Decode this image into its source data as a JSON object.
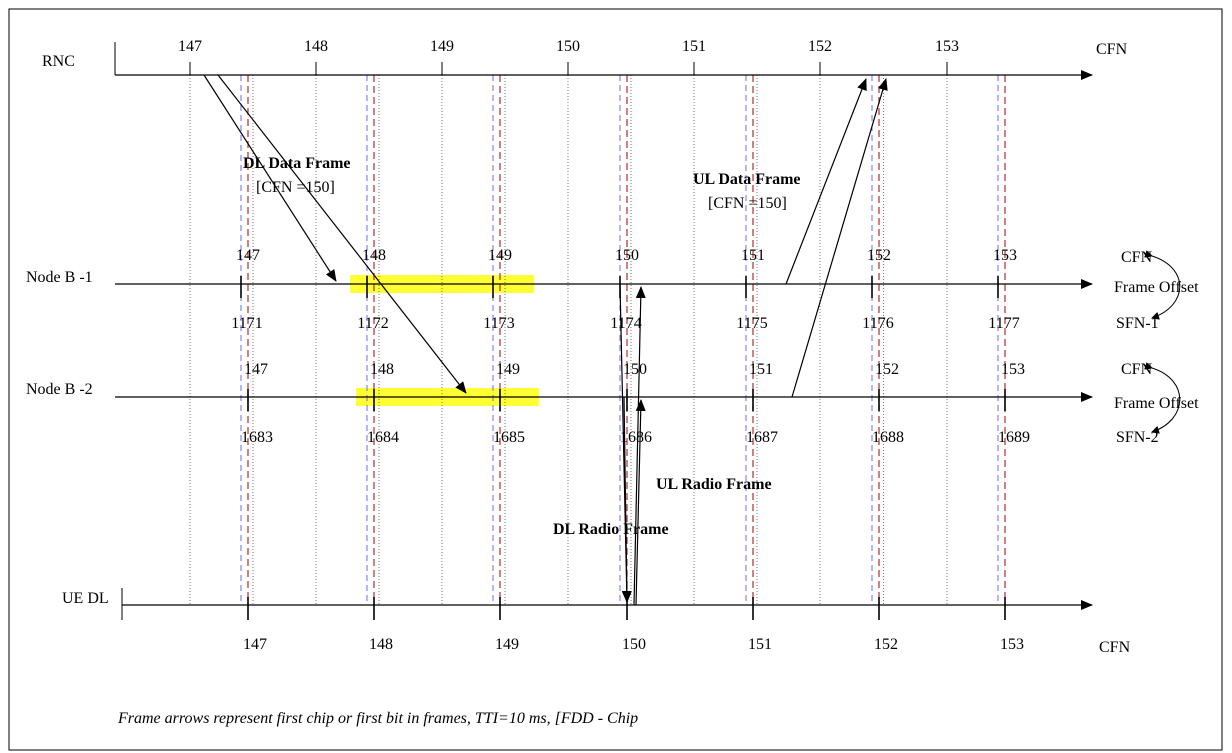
{
  "rows": {
    "rnc": "RNC",
    "nodeb1": "Node B -1",
    "nodeb2": "Node B -2",
    "uedl": "UE DL"
  },
  "rnc_ticks": [
    "147",
    "148",
    "149",
    "150",
    "151",
    "152",
    "153"
  ],
  "rnc_axis_label": "CFN",
  "nodeb1": {
    "cfn": [
      "147",
      "148",
      "149",
      "150",
      "151",
      "152",
      "153"
    ],
    "sfn": [
      "1171",
      "1172",
      "1173",
      "1174",
      "1175",
      "1176",
      "1177"
    ],
    "cfn_label": "CFN",
    "sfn_label": "SFN-1",
    "offset_label": "Frame Offset"
  },
  "nodeb2": {
    "cfn": [
      "147",
      "148",
      "149",
      "150",
      "151",
      "152",
      "153"
    ],
    "sfn": [
      "1683",
      "1684",
      "1685",
      "1686",
      "1687",
      "1688",
      "1689"
    ],
    "cfn_label": "CFN",
    "sfn_label": "SFN-2",
    "offset_label": "Frame Offset"
  },
  "ue_ticks": [
    "147",
    "148",
    "149",
    "150",
    "151",
    "152",
    "153"
  ],
  "ue_axis_label": "CFN",
  "labels": {
    "dl_data_title": "DL Data Frame",
    "dl_data_sub": "[CFN =150]",
    "ul_data_title": "UL Data Frame",
    "ul_data_sub": "[CFN =150]",
    "ul_radio": "UL Radio Frame",
    "dl_radio": "DL Radio Frame"
  },
  "footnote": "Frame arrows represent first chip or first bit in frames, TTI=10 ms, [FDD - Chip",
  "colors": {
    "highlight": "#ffff33",
    "dashed_red": "#b03030",
    "dashed_blue": "#6a6aff"
  }
}
